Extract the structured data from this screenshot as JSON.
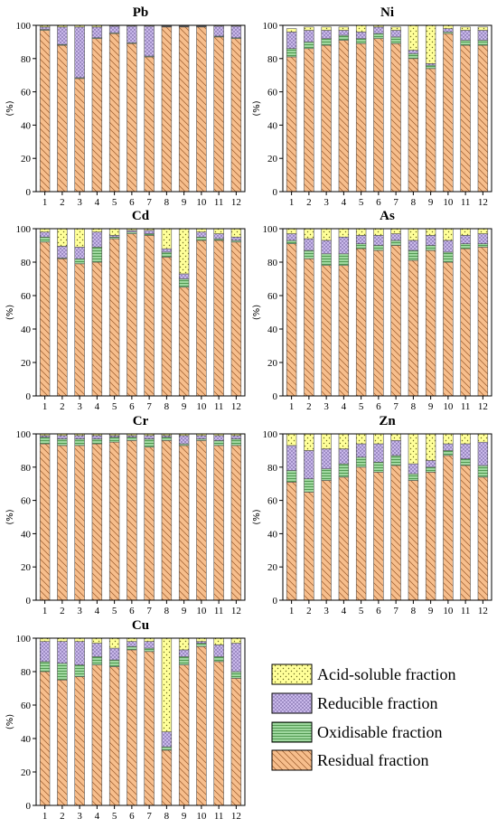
{
  "legend": {
    "items": [
      {
        "label": "Acid-soluble fraction",
        "pattern": "dots",
        "color": "#ffff99"
      },
      {
        "label": "Reducible fraction",
        "pattern": "crosshatch",
        "color": "#c9b8ea"
      },
      {
        "label": "Oxidisable fraction",
        "pattern": "horizontal",
        "color": "#9fd89f"
      },
      {
        "label": "Residual fraction",
        "pattern": "diagonal",
        "color": "#f7be8c"
      }
    ]
  },
  "chart_data": [
    {
      "type": "bar",
      "stacked": true,
      "title": "Pb",
      "ylabel": "(%)",
      "ylim": [
        0,
        100
      ],
      "yticks": [
        0,
        20,
        40,
        60,
        80,
        100
      ],
      "categories": [
        "1",
        "2",
        "3",
        "4",
        "5",
        "6",
        "7",
        "8",
        "9",
        "10",
        "11",
        "12"
      ],
      "series": [
        {
          "name": "Residual fraction",
          "values": [
            97,
            88,
            68,
            92,
            95,
            89,
            81,
            99,
            99,
            99,
            93,
            92
          ]
        },
        {
          "name": "Oxidisable fraction",
          "values": [
            0.5,
            0.5,
            0.5,
            0.5,
            0.5,
            0.5,
            0.5,
            0.3,
            0.3,
            0.3,
            0.5,
            0.5
          ]
        },
        {
          "name": "Reducible fraction",
          "values": [
            1.5,
            10.5,
            30.5,
            6.5,
            4,
            10,
            18,
            0.4,
            0.4,
            0.4,
            6,
            7
          ]
        },
        {
          "name": "Acid-soluble fraction",
          "values": [
            1,
            1,
            1,
            1,
            0.5,
            0.5,
            0.5,
            0.3,
            0.3,
            0.3,
            0.5,
            0.5
          ]
        }
      ]
    },
    {
      "type": "bar",
      "stacked": true,
      "title": "Ni",
      "ylabel": "(%)",
      "ylim": [
        0,
        100
      ],
      "yticks": [
        0,
        20,
        40,
        60,
        80,
        100
      ],
      "categories": [
        "1",
        "2",
        "3",
        "4",
        "5",
        "6",
        "7",
        "8",
        "9",
        "10",
        "11",
        "12"
      ],
      "series": [
        {
          "name": "Residual fraction",
          "values": [
            81,
            86,
            88,
            91,
            89,
            92,
            89,
            80,
            74,
            95,
            88,
            88
          ]
        },
        {
          "name": "Oxidisable fraction",
          "values": [
            5,
            4,
            4,
            3,
            3,
            3,
            4,
            3,
            2,
            1,
            3,
            3
          ]
        },
        {
          "name": "Reducible fraction",
          "values": [
            10,
            7,
            5,
            3,
            4,
            4,
            4,
            2,
            1,
            2,
            6,
            6
          ]
        },
        {
          "name": "Acid-soluble fraction",
          "values": [
            2,
            2,
            2,
            2,
            4,
            1,
            2,
            15,
            23,
            2,
            2,
            2
          ]
        }
      ]
    },
    {
      "type": "bar",
      "stacked": true,
      "title": "Cd",
      "ylabel": "(%)",
      "ylim": [
        0,
        100
      ],
      "yticks": [
        0,
        20,
        40,
        60,
        80,
        100
      ],
      "categories": [
        "1",
        "2",
        "3",
        "4",
        "5",
        "6",
        "7",
        "8",
        "9",
        "10",
        "11",
        "12"
      ],
      "series": [
        {
          "name": "Residual fraction",
          "values": [
            92,
            82,
            79,
            80,
            94,
            97,
            96,
            83,
            65,
            93,
            93,
            92
          ]
        },
        {
          "name": "Oxidisable fraction",
          "values": [
            3,
            0.5,
            3,
            9,
            1,
            1,
            1,
            3,
            5,
            2,
            1,
            1
          ]
        },
        {
          "name": "Reducible fraction",
          "values": [
            3,
            7,
            7,
            9,
            1,
            1,
            2,
            2,
            3,
            3,
            3,
            2
          ]
        },
        {
          "name": "Acid-soluble fraction",
          "values": [
            2,
            10.5,
            11,
            2,
            4,
            1,
            1,
            12,
            27,
            2,
            3,
            5
          ]
        }
      ]
    },
    {
      "type": "bar",
      "stacked": true,
      "title": "As",
      "ylabel": "(%)",
      "ylim": [
        0,
        100
      ],
      "yticks": [
        0,
        20,
        40,
        60,
        80,
        100
      ],
      "categories": [
        "1",
        "2",
        "3",
        "4",
        "5",
        "6",
        "7",
        "8",
        "9",
        "10",
        "11",
        "12"
      ],
      "series": [
        {
          "name": "Residual fraction",
          "values": [
            91,
            82,
            78,
            78,
            88,
            87,
            90,
            81,
            87,
            80,
            88,
            89
          ]
        },
        {
          "name": "Oxidisable fraction",
          "values": [
            2,
            5,
            7,
            7,
            3,
            3,
            3,
            6,
            3,
            6,
            3,
            2
          ]
        },
        {
          "name": "Reducible fraction",
          "values": [
            4,
            7,
            8,
            10,
            5,
            6,
            4,
            6,
            6,
            7,
            5,
            6
          ]
        },
        {
          "name": "Acid-soluble fraction",
          "values": [
            3,
            6,
            7,
            5,
            4,
            4,
            3,
            7,
            4,
            7,
            4,
            3
          ]
        }
      ]
    },
    {
      "type": "bar",
      "stacked": true,
      "title": "Cr",
      "ylabel": "(%)",
      "ylim": [
        0,
        100
      ],
      "yticks": [
        0,
        20,
        40,
        60,
        80,
        100
      ],
      "categories": [
        "1",
        "2",
        "3",
        "4",
        "5",
        "6",
        "7",
        "8",
        "9",
        "10",
        "11",
        "12"
      ],
      "series": [
        {
          "name": "Residual fraction",
          "values": [
            94,
            93,
            93,
            94,
            95,
            96,
            92,
            96,
            93,
            96,
            93,
            93
          ]
        },
        {
          "name": "Oxidisable fraction",
          "values": [
            4,
            4,
            4,
            3,
            3,
            2,
            5,
            2,
            1,
            1,
            3,
            4
          ]
        },
        {
          "name": "Reducible fraction",
          "values": [
            1,
            2,
            2,
            2,
            1,
            1,
            2,
            1,
            5,
            2,
            3,
            2
          ]
        },
        {
          "name": "Acid-soluble fraction",
          "values": [
            1,
            1,
            1,
            1,
            1,
            1,
            1,
            1,
            1,
            1,
            1,
            1
          ]
        }
      ]
    },
    {
      "type": "bar",
      "stacked": true,
      "title": "Zn",
      "ylabel": "(%)",
      "ylim": [
        0,
        100
      ],
      "yticks": [
        0,
        20,
        40,
        60,
        80,
        100
      ],
      "categories": [
        "1",
        "2",
        "3",
        "4",
        "5",
        "6",
        "7",
        "8",
        "9",
        "10",
        "11",
        "12"
      ],
      "series": [
        {
          "name": "Residual fraction",
          "values": [
            71,
            65,
            72,
            74,
            80,
            77,
            81,
            72,
            77,
            87,
            81,
            74
          ]
        },
        {
          "name": "Oxidisable fraction",
          "values": [
            7,
            8,
            7,
            8,
            6,
            6,
            6,
            4,
            3,
            3,
            4,
            7
          ]
        },
        {
          "name": "Reducible fraction",
          "values": [
            15,
            17,
            12,
            9,
            8,
            11,
            9,
            6,
            4,
            4,
            9,
            14
          ]
        },
        {
          "name": "Acid-soluble fraction",
          "values": [
            7,
            10,
            9,
            9,
            6,
            6,
            4,
            18,
            16,
            6,
            6,
            5
          ]
        }
      ]
    },
    {
      "type": "bar",
      "stacked": true,
      "title": "Cu",
      "ylabel": "(%)",
      "ylim": [
        0,
        100
      ],
      "yticks": [
        0,
        20,
        40,
        60,
        80,
        100
      ],
      "categories": [
        "1",
        "2",
        "3",
        "4",
        "5",
        "6",
        "7",
        "8",
        "9",
        "10",
        "11",
        "12"
      ],
      "series": [
        {
          "name": "Residual fraction",
          "values": [
            80,
            75,
            77,
            84,
            83,
            93,
            92,
            33,
            84,
            95,
            86,
            76
          ]
        },
        {
          "name": "Oxidisable fraction",
          "values": [
            6,
            10,
            7,
            5,
            4,
            2,
            2,
            2,
            5,
            2,
            3,
            4
          ]
        },
        {
          "name": "Reducible fraction",
          "values": [
            12,
            13,
            14,
            8,
            7,
            3,
            4,
            9,
            4,
            1,
            7,
            17
          ]
        },
        {
          "name": "Acid-soluble fraction",
          "values": [
            2,
            2,
            2,
            3,
            6,
            2,
            2,
            56,
            7,
            2,
            4,
            3
          ]
        }
      ]
    }
  ]
}
